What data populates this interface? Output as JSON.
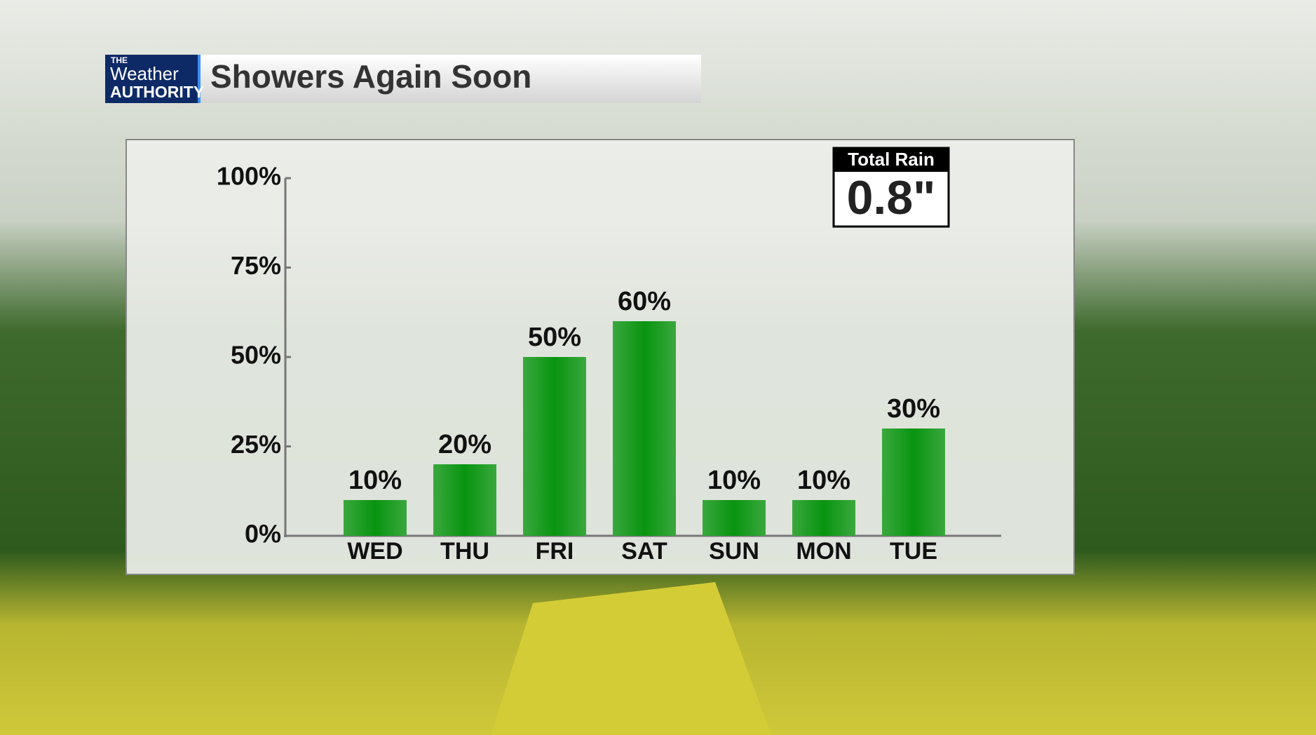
{
  "logo": {
    "line1": "THE",
    "line2": "Weather",
    "line3": "AUTHORITY"
  },
  "chart_data": {
    "type": "bar",
    "title": "Showers Again Soon",
    "categories": [
      "WED",
      "THU",
      "FRI",
      "SAT",
      "SUN",
      "MON",
      "TUE"
    ],
    "values": [
      10,
      20,
      50,
      60,
      10,
      10,
      30
    ],
    "value_labels": [
      "10%",
      "20%",
      "50%",
      "60%",
      "10%",
      "10%",
      "30%"
    ],
    "color": "#0a9a12",
    "ylim": [
      0,
      100
    ],
    "yticks": [
      {
        "value": 0,
        "label": "0%"
      },
      {
        "value": 25,
        "label": "25%"
      },
      {
        "value": 50,
        "label": "50%"
      },
      {
        "value": 75,
        "label": "75%"
      },
      {
        "value": 100,
        "label": "100%"
      }
    ],
    "grid": false,
    "annotation": {
      "label": "Total Rain",
      "value": "0.8\""
    }
  }
}
